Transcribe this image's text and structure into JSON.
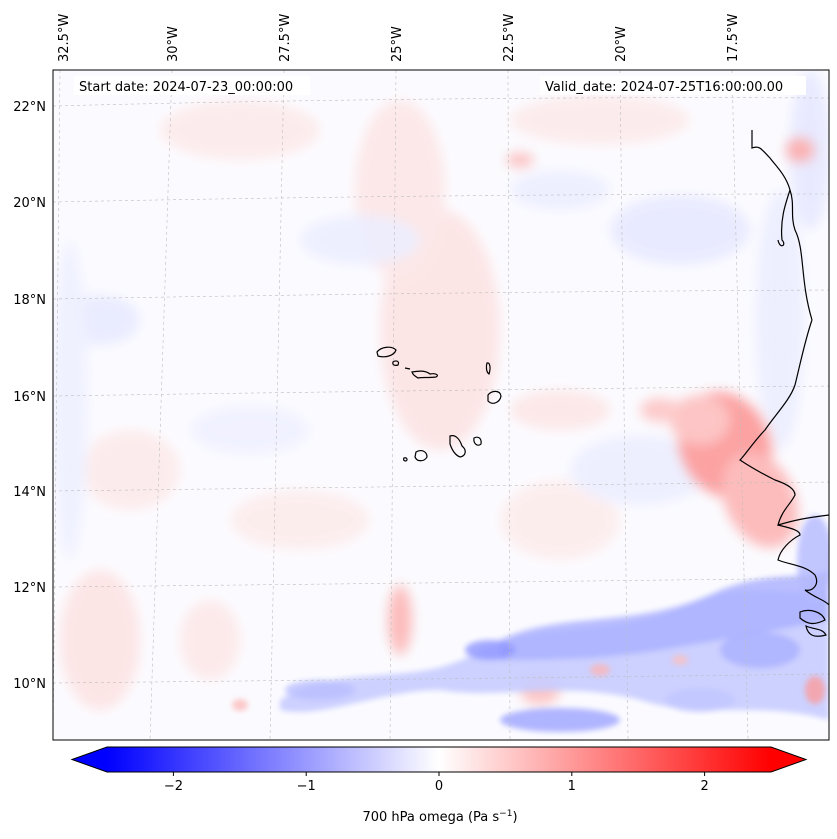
{
  "header": {
    "start_label": "Start date: 2024-07-23_00:00:00",
    "valid_label": "Valid_date: 2024-07-25T16:00:00.00"
  },
  "map": {
    "lon_labels": [
      "32.5°W",
      "30°W",
      "27.5°W",
      "25°W",
      "22.5°W",
      "20°W",
      "17.5°W"
    ],
    "lat_labels": [
      "22°N",
      "20°N",
      "18°N",
      "16°N",
      "14°N",
      "12°N",
      "10°N"
    ],
    "grid": true
  },
  "colorbar": {
    "ticks": [
      "−2",
      "−1",
      "0",
      "1",
      "2"
    ],
    "tick_values": [
      -2,
      -1,
      0,
      1,
      2
    ],
    "range": [
      -2.5,
      2.5
    ],
    "label_main": "700 hPa omega (Pa s",
    "label_sup": "−1",
    "label_close": ")",
    "colors": {
      "low": "#0000ff",
      "mid": "#ffffff",
      "high": "#ff0000"
    },
    "extend": "both"
  }
}
